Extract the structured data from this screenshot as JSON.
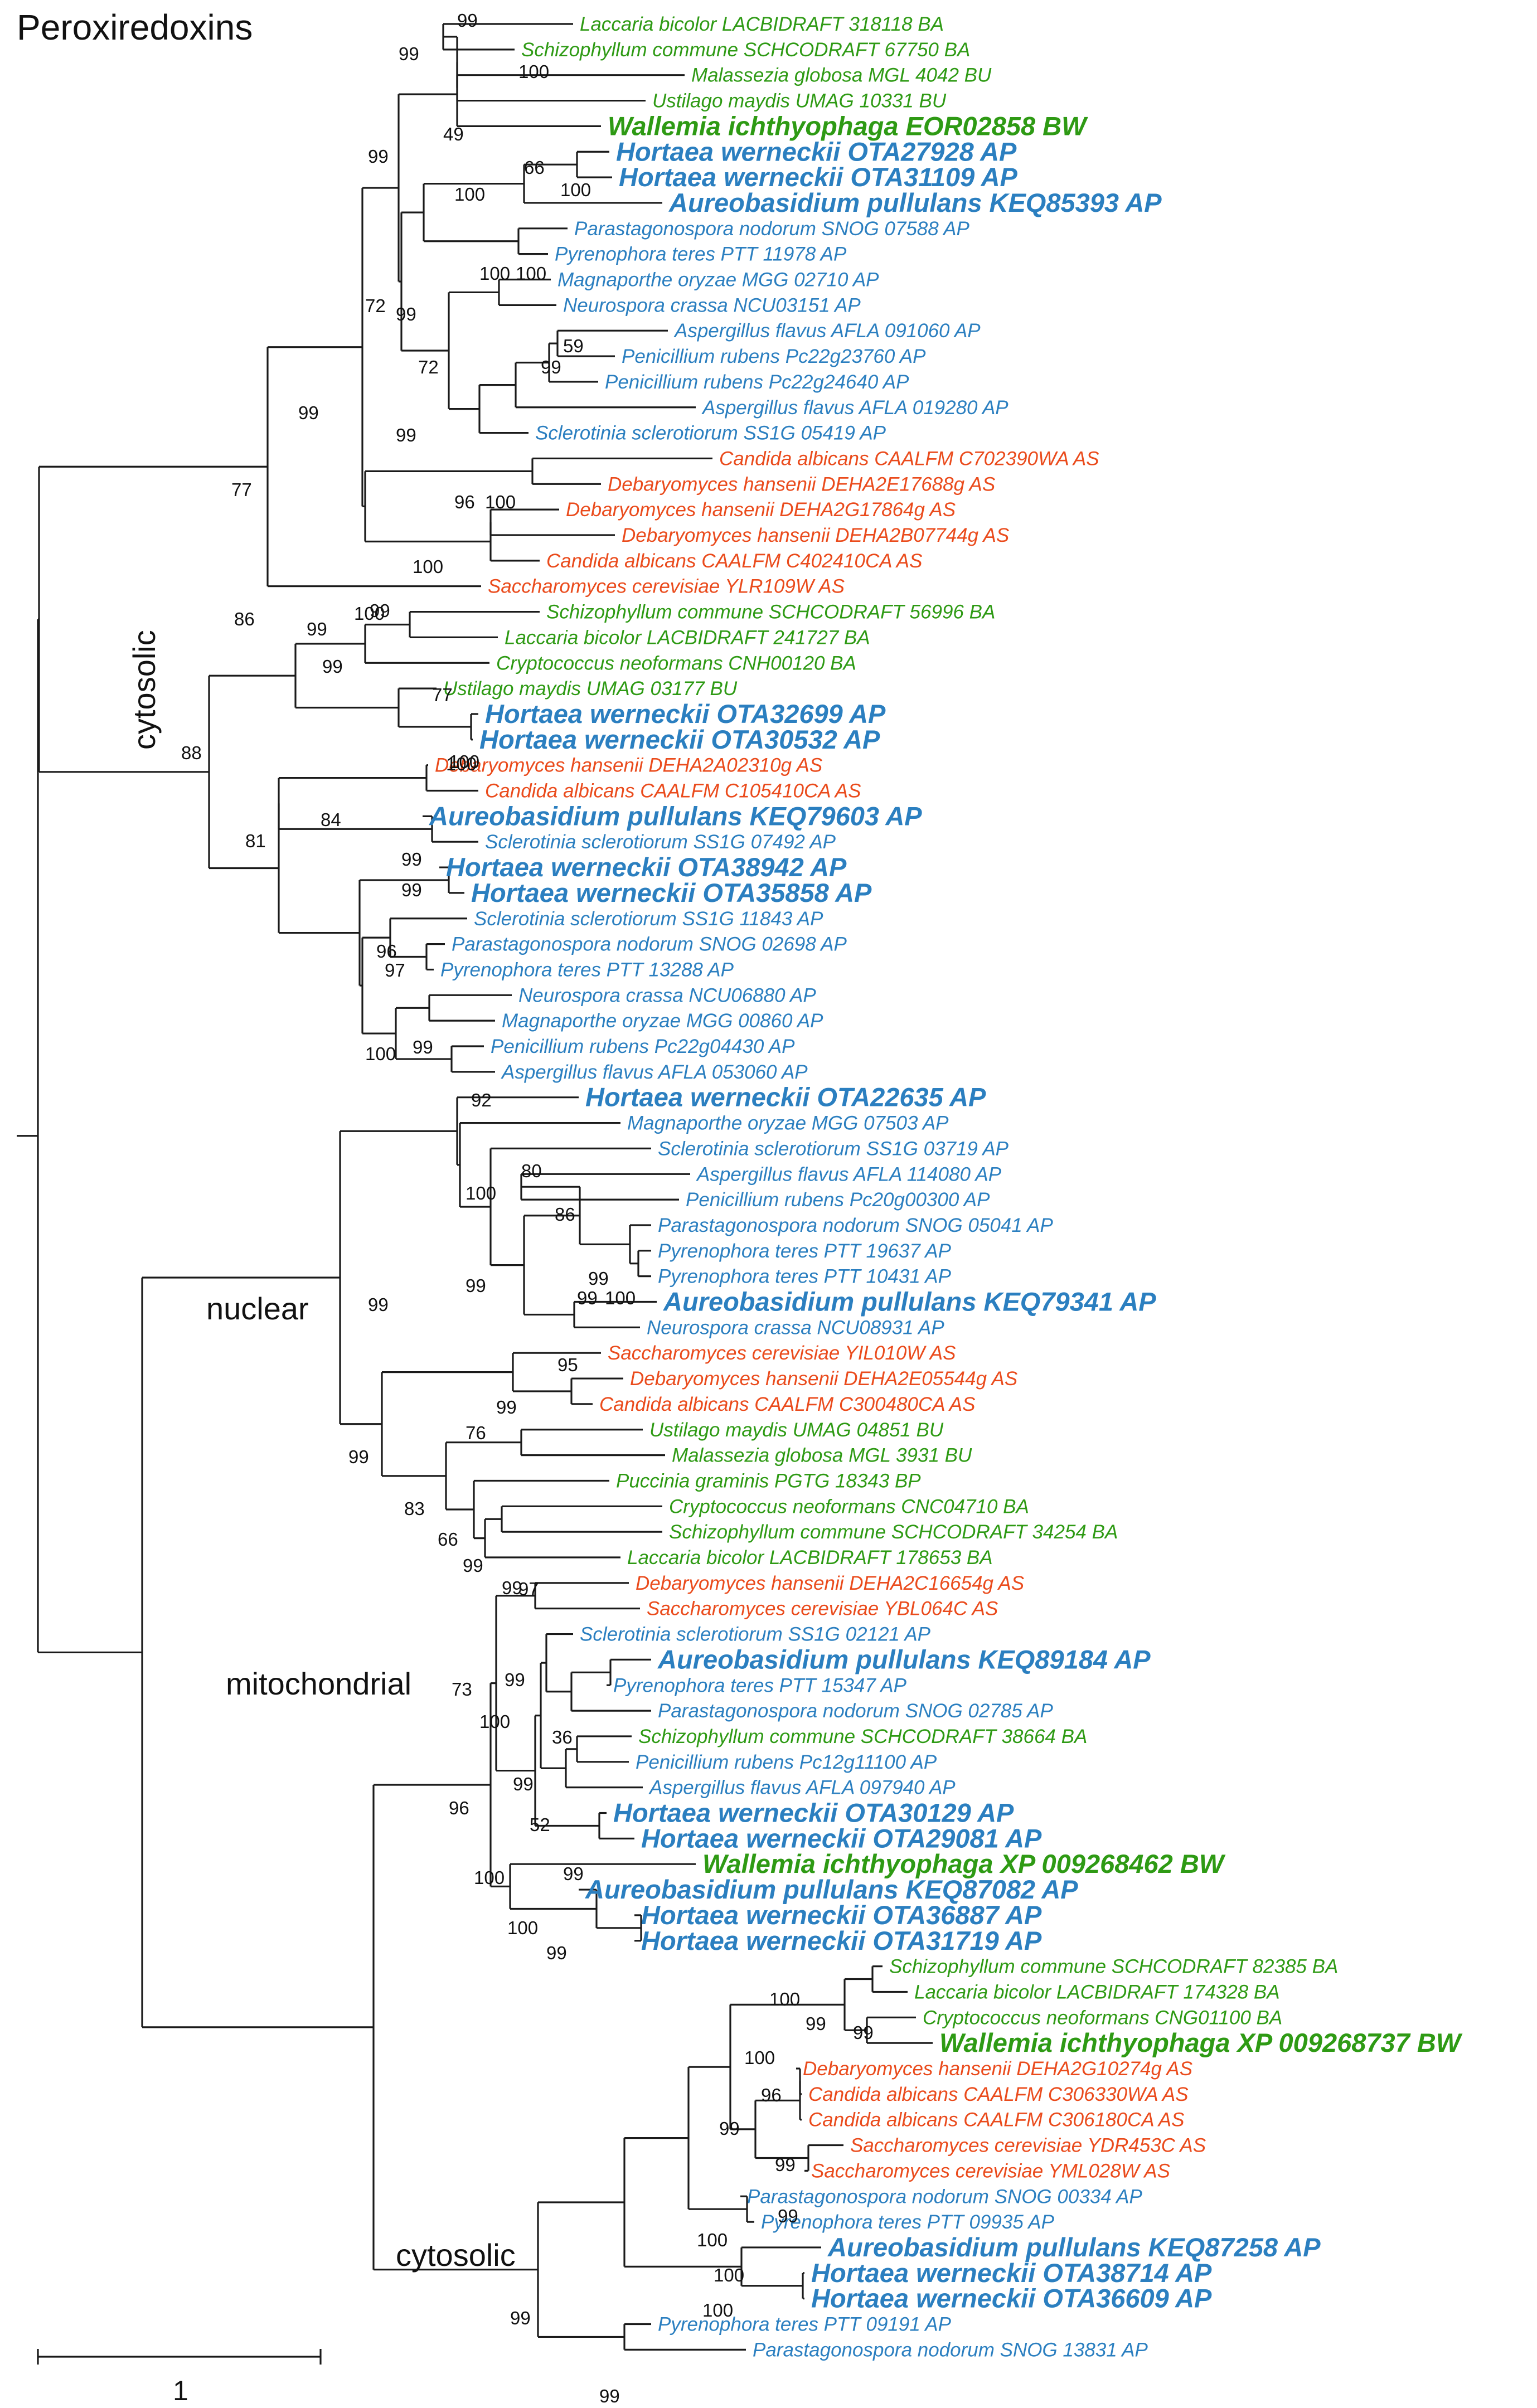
{
  "title": "Peroxiredoxins",
  "colors": {
    "BA": "#2e9a14",
    "BU": "#2e9a14",
    "BP": "#2e9a14",
    "BW": "#2e9a14",
    "AP": "#2b7fc0",
    "AS": "#ea4b1c",
    "line": "#1a1a1a"
  },
  "clades": [
    {
      "id": "cytosolic_1",
      "label": "cytosolic"
    },
    {
      "id": "nuclear",
      "label": "nuclear"
    },
    {
      "id": "mitochondrial",
      "label": "mitochondrial"
    },
    {
      "id": "cytosolic_2",
      "label": "cytosolic"
    }
  ],
  "scale_label": "1",
  "leaves": [
    {
      "label": "Laccaria bicolor LACBIDRAFT 318118 BA",
      "group": "BA",
      "big": false
    },
    {
      "label": "Schizophyllum commune SCHCODRAFT 67750 BA",
      "group": "BA",
      "big": false
    },
    {
      "label": "Malassezia globosa MGL 4042 BU",
      "group": "BU",
      "big": false
    },
    {
      "label": "Ustilago maydis UMAG 10331 BU",
      "group": "BU",
      "big": false
    },
    {
      "label": "Wallemia ichthyophaga EOR02858 BW",
      "group": "BW",
      "big": true
    },
    {
      "label": "Hortaea werneckii OTA27928 AP",
      "group": "AP",
      "big": true
    },
    {
      "label": "Hortaea werneckii OTA31109 AP",
      "group": "AP",
      "big": true
    },
    {
      "label": "Aureobasidium pullulans KEQ85393 AP",
      "group": "AP",
      "big": true
    },
    {
      "label": "Parastagonospora nodorum SNOG 07588 AP",
      "group": "AP",
      "big": false
    },
    {
      "label": "Pyrenophora teres PTT 11978 AP",
      "group": "AP",
      "big": false
    },
    {
      "label": "Magnaporthe oryzae MGG 02710 AP",
      "group": "AP",
      "big": false
    },
    {
      "label": "Neurospora crassa NCU03151 AP",
      "group": "AP",
      "big": false
    },
    {
      "label": "Aspergillus flavus AFLA 091060 AP",
      "group": "AP",
      "big": false
    },
    {
      "label": "Penicillium rubens Pc22g23760 AP",
      "group": "AP",
      "big": false
    },
    {
      "label": "Penicillium rubens Pc22g24640 AP",
      "group": "AP",
      "big": false
    },
    {
      "label": "Aspergillus flavus AFLA 019280 AP",
      "group": "AP",
      "big": false
    },
    {
      "label": "Sclerotinia sclerotiorum SS1G 05419 AP",
      "group": "AP",
      "big": false
    },
    {
      "label": "Candida albicans CAALFM C702390WA AS",
      "group": "AS",
      "big": false
    },
    {
      "label": "Debaryomyces hansenii DEHA2E17688g AS",
      "group": "AS",
      "big": false
    },
    {
      "label": "Debaryomyces hansenii DEHA2G17864g AS",
      "group": "AS",
      "big": false
    },
    {
      "label": "Debaryomyces hansenii DEHA2B07744g AS",
      "group": "AS",
      "big": false
    },
    {
      "label": "Candida albicans CAALFM C402410CA AS",
      "group": "AS",
      "big": false
    },
    {
      "label": "Saccharomyces cerevisiae YLR109W AS",
      "group": "AS",
      "big": false
    },
    {
      "label": "Schizophyllum commune SCHCODRAFT 56996 BA",
      "group": "BA",
      "big": false
    },
    {
      "label": "Laccaria bicolor LACBIDRAFT 241727 BA",
      "group": "BA",
      "big": false
    },
    {
      "label": "Cryptococcus neoformans CNH00120 BA",
      "group": "BA",
      "big": false
    },
    {
      "label": "Ustilago maydis UMAG 03177 BU",
      "group": "BU",
      "big": false
    },
    {
      "label": "Hortaea werneckii OTA32699 AP",
      "group": "AP",
      "big": true
    },
    {
      "label": "Hortaea werneckii OTA30532 AP",
      "group": "AP",
      "big": true
    },
    {
      "label": "Debaryomyces hansenii DEHA2A02310g AS",
      "group": "AS",
      "big": false
    },
    {
      "label": "Candida albicans CAALFM C105410CA AS",
      "group": "AS",
      "big": false
    },
    {
      "label": "Aureobasidium pullulans KEQ79603 AP",
      "group": "AP",
      "big": true
    },
    {
      "label": "Sclerotinia sclerotiorum SS1G 07492 AP",
      "group": "AP",
      "big": false
    },
    {
      "label": "Hortaea werneckii OTA38942 AP",
      "group": "AP",
      "big": true
    },
    {
      "label": "Hortaea werneckii OTA35858 AP",
      "group": "AP",
      "big": true
    },
    {
      "label": "Sclerotinia sclerotiorum SS1G 11843 AP",
      "group": "AP",
      "big": false
    },
    {
      "label": "Parastagonospora nodorum SNOG 02698 AP",
      "group": "AP",
      "big": false
    },
    {
      "label": "Pyrenophora teres PTT 13288 AP",
      "group": "AP",
      "big": false
    },
    {
      "label": "Neurospora crassa NCU06880 AP",
      "group": "AP",
      "big": false
    },
    {
      "label": "Magnaporthe oryzae MGG 00860 AP",
      "group": "AP",
      "big": false
    },
    {
      "label": "Penicillium rubens Pc22g04430 AP",
      "group": "AP",
      "big": false
    },
    {
      "label": "Aspergillus flavus AFLA 053060 AP",
      "group": "AP",
      "big": false
    },
    {
      "label": "Hortaea werneckii OTA22635 AP",
      "group": "AP",
      "big": true
    },
    {
      "label": "Magnaporthe oryzae MGG 07503 AP",
      "group": "AP",
      "big": false
    },
    {
      "label": "Sclerotinia sclerotiorum SS1G 03719 AP",
      "group": "AP",
      "big": false
    },
    {
      "label": "Aspergillus flavus AFLA 114080 AP",
      "group": "AP",
      "big": false
    },
    {
      "label": "Penicillium rubens Pc20g00300 AP",
      "group": "AP",
      "big": false
    },
    {
      "label": "Parastagonospora nodorum SNOG 05041 AP",
      "group": "AP",
      "big": false
    },
    {
      "label": "Pyrenophora teres PTT 19637 AP",
      "group": "AP",
      "big": false
    },
    {
      "label": "Pyrenophora teres PTT 10431 AP",
      "group": "AP",
      "big": false
    },
    {
      "label": "Aureobasidium pullulans KEQ79341 AP",
      "group": "AP",
      "big": true
    },
    {
      "label": "Neurospora crassa NCU08931 AP",
      "group": "AP",
      "big": false
    },
    {
      "label": "Saccharomyces cerevisiae YIL010W AS",
      "group": "AS",
      "big": false
    },
    {
      "label": "Debaryomyces hansenii DEHA2E05544g AS",
      "group": "AS",
      "big": false
    },
    {
      "label": "Candida albicans CAALFM C300480CA AS",
      "group": "AS",
      "big": false
    },
    {
      "label": "Ustilago maydis UMAG 04851 BU",
      "group": "BU",
      "big": false
    },
    {
      "label": "Malassezia globosa MGL 3931 BU",
      "group": "BU",
      "big": false
    },
    {
      "label": "Puccinia graminis PGTG 18343 BP",
      "group": "BP",
      "big": false
    },
    {
      "label": "Cryptococcus neoformans CNC04710 BA",
      "group": "BA",
      "big": false
    },
    {
      "label": "Schizophyllum commune SCHCODRAFT 34254 BA",
      "group": "BA",
      "big": false
    },
    {
      "label": "Laccaria bicolor LACBIDRAFT 178653 BA",
      "group": "BA",
      "big": false
    },
    {
      "label": "Debaryomyces hansenii DEHA2C16654g AS",
      "group": "AS",
      "big": false
    },
    {
      "label": "Saccharomyces cerevisiae YBL064C AS",
      "group": "AS",
      "big": false
    },
    {
      "label": "Sclerotinia sclerotiorum SS1G 02121 AP",
      "group": "AP",
      "big": false
    },
    {
      "label": "Aureobasidium pullulans KEQ89184 AP",
      "group": "AP",
      "big": true
    },
    {
      "label": "Pyrenophora teres PTT 15347 AP",
      "group": "AP",
      "big": false
    },
    {
      "label": "Parastagonospora nodorum SNOG 02785 AP",
      "group": "AP",
      "big": false
    },
    {
      "label": "Schizophyllum commune SCHCODRAFT 38664 BA",
      "group": "BA",
      "big": false
    },
    {
      "label": "Penicillium rubens Pc12g11100 AP",
      "group": "AP",
      "big": false
    },
    {
      "label": "Aspergillus flavus AFLA 097940 AP",
      "group": "AP",
      "big": false
    },
    {
      "label": "Hortaea werneckii OTA30129 AP",
      "group": "AP",
      "big": true
    },
    {
      "label": "Hortaea werneckii OTA29081 AP",
      "group": "AP",
      "big": true
    },
    {
      "label": "Wallemia ichthyophaga XP 009268462 BW",
      "group": "BW",
      "big": true
    },
    {
      "label": "Aureobasidium pullulans KEQ87082 AP",
      "group": "AP",
      "big": true
    },
    {
      "label": "Hortaea werneckii OTA36887 AP",
      "group": "AP",
      "big": true
    },
    {
      "label": "Hortaea werneckii OTA31719 AP",
      "group": "AP",
      "big": true
    },
    {
      "label": "Schizophyllum commune SCHCODRAFT 82385 BA",
      "group": "BA",
      "big": false
    },
    {
      "label": "Laccaria bicolor LACBIDRAFT 174328 BA",
      "group": "BA",
      "big": false
    },
    {
      "label": "Cryptococcus neoformans CNG01100 BA",
      "group": "BA",
      "big": false
    },
    {
      "label": "Wallemia ichthyophaga XP 009268737 BW",
      "group": "BW",
      "big": true
    },
    {
      "label": "Debaryomyces hansenii DEHA2G10274g AS",
      "group": "AS",
      "big": false
    },
    {
      "label": "Candida albicans CAALFM C306330WA AS",
      "group": "AS",
      "big": false
    },
    {
      "label": "Candida albicans CAALFM C306180CA AS",
      "group": "AS",
      "big": false
    },
    {
      "label": "Saccharomyces cerevisiae YDR453C AS",
      "group": "AS",
      "big": false
    },
    {
      "label": "Saccharomyces cerevisiae YML028W AS",
      "group": "AS",
      "big": false
    },
    {
      "label": "Parastagonospora nodorum SNOG 00334 AP",
      "group": "AP",
      "big": false
    },
    {
      "label": "Pyrenophora teres PTT 09935 AP",
      "group": "AP",
      "big": false
    },
    {
      "label": "Aureobasidium pullulans KEQ87258 AP",
      "group": "AP",
      "big": true
    },
    {
      "label": "Hortaea werneckii OTA38714 AP",
      "group": "AP",
      "big": true
    },
    {
      "label": "Hortaea werneckii OTA36609 AP",
      "group": "AP",
      "big": true
    },
    {
      "label": "Pyrenophora teres PTT 09191 AP",
      "group": "AP",
      "big": false
    },
    {
      "label": "Parastagonospora nodorum SNOG 13831 AP",
      "group": "AP",
      "big": false
    }
  ],
  "bootstrap": [
    "99",
    "99",
    "100",
    "49",
    "99",
    "66",
    "100",
    "100",
    "72",
    "100",
    "99",
    "100",
    "59",
    "99",
    "72",
    "99",
    "99",
    "96",
    "100",
    "100",
    "100",
    "77",
    "86",
    "99",
    "99",
    "100",
    "77",
    "88",
    "99",
    "100",
    "81",
    "99",
    "84",
    "99",
    "96",
    "97",
    "100",
    "99",
    "92",
    "100",
    "80",
    "86",
    "99",
    "99",
    "100",
    "99",
    "99",
    "95",
    "99",
    "76",
    "99",
    "83",
    "66",
    "99",
    "99",
    "97",
    "99",
    "73",
    "100",
    "36",
    "99",
    "96",
    "52",
    "100",
    "99",
    "100",
    "99",
    "100",
    "99",
    "99",
    "100",
    "96",
    "99",
    "99",
    "99",
    "100",
    "100",
    "100",
    "99",
    "99"
  ]
}
